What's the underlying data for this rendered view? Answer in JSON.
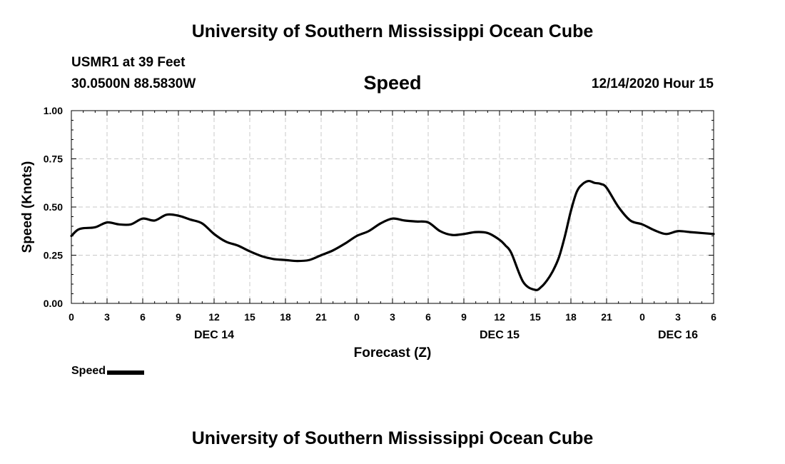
{
  "header": {
    "title_top": "University of Southern Mississippi Ocean Cube",
    "station": "USMR1 at 39 Feet",
    "coords": "30.0500N 88.5830W",
    "chart_title": "Speed",
    "datetime": "12/14/2020 Hour 15"
  },
  "footer": {
    "title_bottom": "University of Southern Mississippi Ocean Cube"
  },
  "legend": {
    "label": "Speed"
  },
  "chart_data": {
    "type": "line",
    "title": "Speed",
    "xlabel": "Forecast (Z)",
    "ylabel": "Speed (Knots)",
    "xlim": [
      0,
      54
    ],
    "ylim": [
      0,
      1.0
    ],
    "grid": true,
    "y_ticks": [
      0.0,
      0.25,
      0.5,
      0.75,
      1.0
    ],
    "y_tick_labels": [
      "0.00",
      "0.25",
      "0.50",
      "0.75",
      "1.00"
    ],
    "x_ticks": [
      0,
      3,
      6,
      9,
      12,
      15,
      18,
      21,
      24,
      27,
      30,
      33,
      36,
      39,
      42,
      45,
      48,
      51,
      54
    ],
    "x_tick_labels": [
      "0",
      "3",
      "6",
      "9",
      "12",
      "15",
      "18",
      "21",
      "0",
      "3",
      "6",
      "9",
      "12",
      "15",
      "18",
      "21",
      "0",
      "3",
      "6"
    ],
    "date_labels": [
      {
        "x": 12,
        "label": "DEC 14"
      },
      {
        "x": 36,
        "label": "DEC 15"
      },
      {
        "x": 51,
        "label": "DEC 16"
      }
    ],
    "series": [
      {
        "name": "Speed",
        "color": "#000000",
        "x": [
          0,
          0.5,
          1,
          2,
          3,
          4,
          5,
          6,
          7,
          8,
          9,
          10,
          11,
          12,
          13,
          14,
          15,
          16,
          17,
          18,
          19,
          20,
          21,
          22,
          23,
          24,
          25,
          26,
          27,
          28,
          29,
          30,
          31,
          32,
          33,
          34,
          35,
          36,
          36.5,
          37,
          38,
          39,
          39.5,
          40,
          40.5,
          41,
          41.5,
          42,
          42.5,
          43,
          43.5,
          44,
          44.5,
          45,
          46,
          47,
          48,
          49,
          50,
          51,
          52,
          53,
          54
        ],
        "values": [
          0.35,
          0.38,
          0.39,
          0.395,
          0.42,
          0.41,
          0.41,
          0.44,
          0.43,
          0.46,
          0.455,
          0.435,
          0.415,
          0.36,
          0.32,
          0.3,
          0.27,
          0.245,
          0.23,
          0.225,
          0.22,
          0.225,
          0.25,
          0.275,
          0.31,
          0.35,
          0.375,
          0.415,
          0.44,
          0.43,
          0.425,
          0.42,
          0.375,
          0.355,
          0.36,
          0.37,
          0.365,
          0.33,
          0.3,
          0.26,
          0.11,
          0.07,
          0.085,
          0.12,
          0.17,
          0.24,
          0.35,
          0.48,
          0.58,
          0.62,
          0.635,
          0.625,
          0.62,
          0.6,
          0.5,
          0.43,
          0.41,
          0.38,
          0.36,
          0.375,
          0.37,
          0.365,
          0.36
        ]
      }
    ]
  }
}
